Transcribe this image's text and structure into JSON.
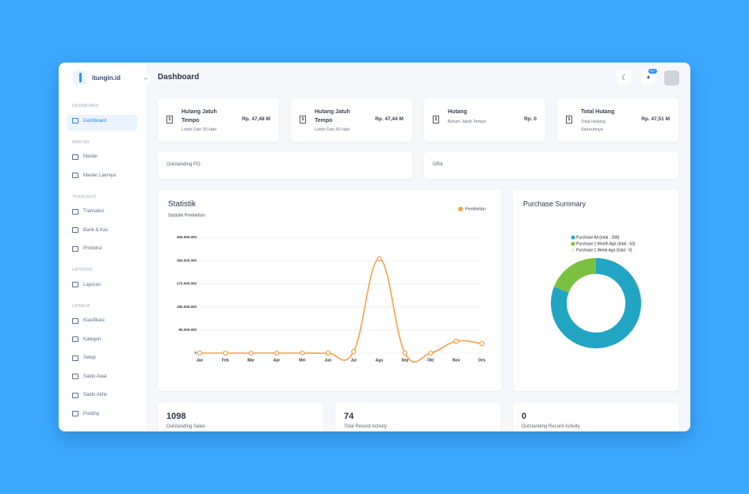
{
  "brand": "itungin.id",
  "header": {
    "title": "Dashboard",
    "badge": "99+"
  },
  "sidebar": {
    "sections": [
      {
        "label": "DASHBOARD",
        "items": [
          "Dashboard"
        ]
      },
      {
        "label": "MASTER",
        "items": [
          "Master",
          "Master Lainnya"
        ]
      },
      {
        "label": "TRANSAKSI",
        "items": [
          "Transaksi",
          "Bank & Kas",
          "Produksi"
        ]
      },
      {
        "label": "LAPORAN",
        "items": [
          "Laporan"
        ]
      },
      {
        "label": "LAINNYA",
        "items": [
          "Klasifikasi",
          "Kategori",
          "Setup",
          "Saldo Awal",
          "Saldo Akhir",
          "Posting"
        ]
      }
    ]
  },
  "cards": [
    {
      "title": "Hutang Jatuh Tempo",
      "subtitle": "Lebih Dari 30 Hari",
      "value": "Rp. 47,48 M"
    },
    {
      "title": "Hutang Jatuh Tempo",
      "subtitle": "Lebih Dari 60 Hari",
      "value": "Rp. 47,44 M"
    },
    {
      "title": "Hutang",
      "subtitle": "Belum Jatuh Tempo",
      "value": "Rp. 0"
    },
    {
      "title": "Total Hutang",
      "subtitle": "Total Hutang Seluruhnya",
      "value": "Rp. 47,51 M"
    }
  ],
  "panels": [
    "Outstanding PO",
    "GRA"
  ],
  "chart_data": [
    {
      "type": "line",
      "title": "Statistik",
      "subtitle": "Statistik Pembelian",
      "categories": [
        "Jan",
        "Feb",
        "Mar",
        "Apr",
        "Mei",
        "Jun",
        "Jul",
        "Agu",
        "Sep",
        "Okt",
        "Nov",
        "Des"
      ],
      "series": [
        {
          "name": "Pembelian",
          "color": "#f7a04b",
          "values": [
            0,
            0,
            0,
            0,
            0,
            0,
            6000000,
            367000000,
            0,
            0,
            46000000,
            37000000
          ]
        }
      ],
      "ylim": [
        0,
        450000000
      ],
      "yticks": [
        0,
        {
          "value": 90000000,
          "label": "90.000.000"
        },
        {
          "value": 180000000,
          "label": "180.000.000"
        },
        {
          "value": 270000000,
          "label": "270.000.000"
        },
        {
          "value": 360000000,
          "label": "360.000.000"
        },
        {
          "value": 450000000,
          "label": "450.000.000"
        }
      ],
      "grid": true,
      "legend": "top-right"
    },
    {
      "type": "pie",
      "title": "Purchase Summary",
      "categories": [
        "Purchase All (total : 268)",
        "Purchase 1 Month Ago (total : 63)",
        "Purchase 1 Week Ago (total : 0)"
      ],
      "values": [
        268,
        63,
        0
      ],
      "colors": [
        "#21a5c2",
        "#7ac142",
        "#e8f0d8"
      ],
      "donut": true,
      "legend": "top"
    }
  ],
  "stats": [
    {
      "value": 1098,
      "label": "Outstanding Sales"
    },
    {
      "value": 74,
      "label": "Total Record Activity"
    },
    {
      "value": 0,
      "label": "Outstanding Record Activity"
    }
  ]
}
